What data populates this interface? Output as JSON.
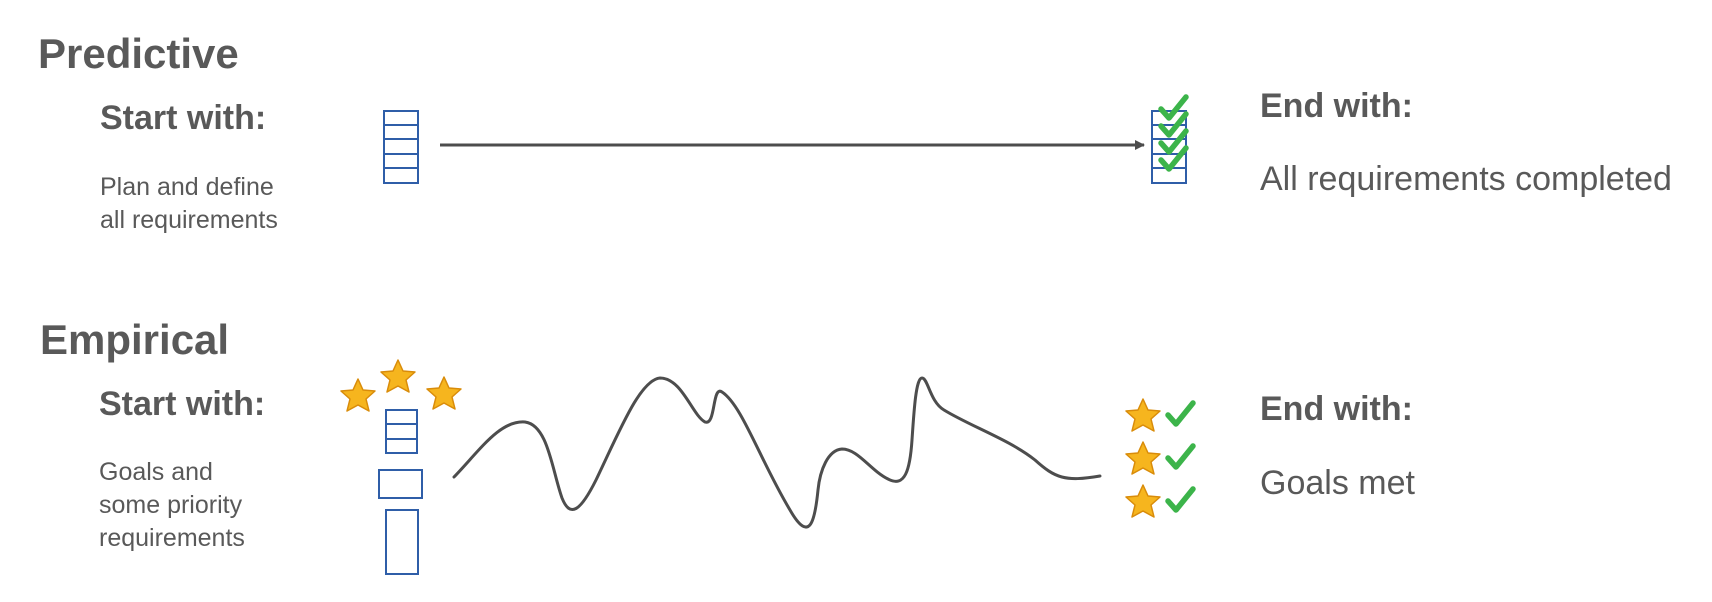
{
  "predictive": {
    "heading": "Predictive",
    "start_label": "Start with:",
    "start_desc": "Plan and define\nall requirements",
    "end_label": "End with:",
    "end_desc": "All requirements completed"
  },
  "empirical": {
    "heading": "Empirical",
    "start_label": "Start with:",
    "start_desc": "Goals and\nsome priority\nrequirements",
    "end_label": "End with:",
    "end_desc": "Goals met"
  },
  "colors": {
    "text": "#595959",
    "box_outline": "#2f5ea8",
    "check": "#3cb44a",
    "star_fill": "#f6b51e",
    "star_outline": "#d98c0a",
    "line": "#4d4d4d"
  }
}
